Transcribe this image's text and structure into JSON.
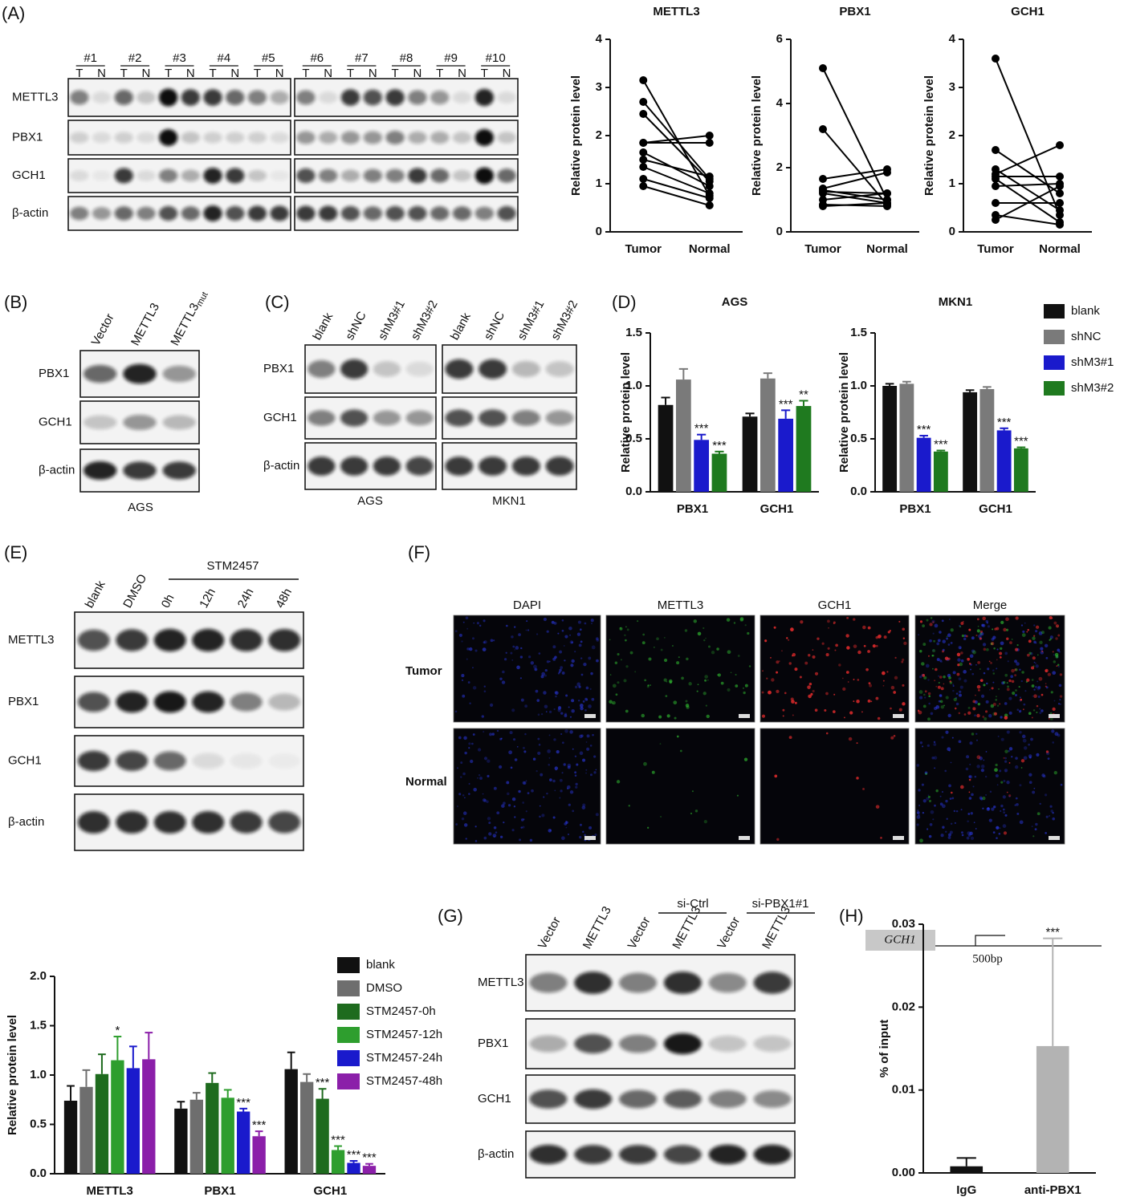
{
  "panel_labels": [
    "(A)",
    "(B)",
    "(C)",
    "(D)",
    "(E)",
    "(F)",
    "(G)",
    "(H)"
  ],
  "chart_data": [
    {
      "type": "line",
      "title": "METTL3",
      "y_label": "Relative protein level",
      "categories": [
        "Tumor",
        "Normal"
      ],
      "color": "#000000",
      "ylim": [
        0,
        4
      ],
      "yticks": [
        0,
        1,
        2,
        3,
        4
      ],
      "series": [
        {
          "values": [
            3.15,
            0.75
          ]
        },
        {
          "values": [
            2.7,
            1.1
          ]
        },
        {
          "values": [
            2.45,
            1.05
          ]
        },
        {
          "values": [
            1.85,
            2.0
          ]
        },
        {
          "values": [
            1.85,
            1.85
          ]
        },
        {
          "values": [
            1.65,
            0.95
          ]
        },
        {
          "values": [
            1.5,
            1.15
          ]
        },
        {
          "values": [
            1.35,
            0.8
          ]
        },
        {
          "values": [
            1.1,
            0.7
          ]
        },
        {
          "values": [
            0.95,
            0.55
          ]
        }
      ]
    },
    {
      "type": "line",
      "title": "PBX1",
      "y_label": "Relative protein level",
      "categories": [
        "Tumor",
        "Normal"
      ],
      "color": "#000000",
      "ylim": [
        0,
        6
      ],
      "yticks": [
        0,
        2,
        4,
        6
      ],
      "series": [
        {
          "values": [
            5.1,
            1.0
          ]
        },
        {
          "values": [
            3.2,
            0.85
          ]
        },
        {
          "values": [
            1.65,
            1.95
          ]
        },
        {
          "values": [
            1.35,
            1.85
          ]
        },
        {
          "values": [
            1.25,
            1.2
          ]
        },
        {
          "values": [
            1.2,
            0.9
          ]
        },
        {
          "values": [
            1.0,
            1.2
          ]
        },
        {
          "values": [
            0.85,
            0.8
          ]
        },
        {
          "values": [
            1.3,
            1.0
          ]
        },
        {
          "values": [
            0.8,
            0.9
          ]
        }
      ]
    },
    {
      "type": "line",
      "title": "GCH1",
      "y_label": "Relative protein level",
      "categories": [
        "Tumor",
        "Normal"
      ],
      "color": "#000000",
      "ylim": [
        0,
        4
      ],
      "yticks": [
        0,
        1,
        2,
        3,
        4
      ],
      "series": [
        {
          "values": [
            3.6,
            0.35
          ]
        },
        {
          "values": [
            1.7,
            0.8
          ]
        },
        {
          "values": [
            1.3,
            0.45
          ]
        },
        {
          "values": [
            1.2,
            1.8
          ]
        },
        {
          "values": [
            1.1,
            0.2
          ]
        },
        {
          "values": [
            1.15,
            1.15
          ]
        },
        {
          "values": [
            0.95,
            1.0
          ]
        },
        {
          "values": [
            0.6,
            0.6
          ]
        },
        {
          "values": [
            0.35,
            0.15
          ]
        },
        {
          "values": [
            0.25,
            0.95
          ]
        }
      ]
    },
    {
      "type": "bar",
      "title": "AGS",
      "y_label": "Relative protein level",
      "categories": [
        "PBX1",
        "GCH1"
      ],
      "legend": "right",
      "ylim": [
        0,
        1.5
      ],
      "yticks": [
        {
          "value": 0,
          "label": "0.0"
        },
        0.5,
        {
          "value": 1,
          "label": "1.0"
        },
        1.5
      ],
      "series": [
        {
          "name": "blank",
          "color": "#111111",
          "values": [
            0.82,
            0.71
          ],
          "errors": [
            0.07,
            0.03
          ]
        },
        {
          "name": "shNC",
          "color": "#7a7a7a",
          "values": [
            1.06,
            1.07
          ],
          "errors": [
            0.1,
            0.05
          ]
        },
        {
          "name": "shM3#1",
          "color": "#1a1acc",
          "values": [
            0.49,
            0.69
          ],
          "errors": [
            0.05,
            0.08
          ],
          "significance": [
            "***",
            "***"
          ]
        },
        {
          "name": "shM3#2",
          "color": "#1f7a1f",
          "values": [
            0.36,
            0.81
          ],
          "errors": [
            0.02,
            0.05
          ],
          "significance": [
            "***",
            "**"
          ]
        }
      ]
    },
    {
      "type": "bar",
      "title": "MKN1",
      "y_label": "Relative protein level",
      "categories": [
        "PBX1",
        "GCH1"
      ],
      "ylim": [
        0,
        1.5
      ],
      "yticks": [
        {
          "value": 0,
          "label": "0.0"
        },
        0.5,
        {
          "value": 1,
          "label": "1.0"
        },
        1.5
      ],
      "series": [
        {
          "color": "#111111",
          "values": [
            1.0,
            0.94
          ],
          "errors": [
            0.02,
            0.02
          ]
        },
        {
          "color": "#7a7a7a",
          "values": [
            1.02,
            0.97
          ],
          "errors": [
            0.02,
            0.02
          ]
        },
        {
          "color": "#1a1acc",
          "values": [
            0.51,
            0.58
          ],
          "errors": [
            0.02,
            0.02
          ],
          "significance": [
            "***",
            "***"
          ]
        },
        {
          "color": "#1f7a1f",
          "values": [
            0.38,
            0.41
          ],
          "errors": [
            0.01,
            0.01
          ],
          "significance": [
            "***",
            "***"
          ]
        }
      ]
    },
    {
      "type": "bar",
      "y_label": "Relative protein level",
      "categories": [
        "METTL3",
        "PBX1",
        "GCH1"
      ],
      "legend": "right",
      "ylim": [
        0,
        2.0
      ],
      "yticks": [
        {
          "value": 0,
          "label": "0.0"
        },
        0.5,
        {
          "value": 1,
          "label": "1.0"
        },
        1.5,
        {
          "value": 2,
          "label": "2.0"
        }
      ],
      "series": [
        {
          "name": "blank",
          "color": "#111111",
          "values": [
            0.74,
            0.66,
            1.06
          ],
          "errors": [
            0.15,
            0.07,
            0.17
          ]
        },
        {
          "name": "DMSO",
          "color": "#6e6e6e",
          "values": [
            0.88,
            0.75,
            0.93
          ],
          "errors": [
            0.17,
            0.07,
            0.08
          ]
        },
        {
          "name": "STM2457-0h",
          "color": "#1e6b1e",
          "values": [
            1.01,
            0.92,
            0.76
          ],
          "errors": [
            0.2,
            0.1,
            0.1
          ],
          "significance": [
            null,
            null,
            "***"
          ]
        },
        {
          "name": "STM2457-12h",
          "color": "#2e9e2e",
          "values": [
            1.15,
            0.77,
            0.24
          ],
          "errors": [
            0.24,
            0.08,
            0.04
          ],
          "significance": [
            "*",
            null,
            "***"
          ]
        },
        {
          "name": "STM2457-24h",
          "color": "#1a1acc",
          "values": [
            1.07,
            0.63,
            0.11
          ],
          "errors": [
            0.22,
            0.03,
            0.02
          ],
          "significance": [
            null,
            "***",
            "***"
          ]
        },
        {
          "name": "STM2457-48h",
          "color": "#8b1fa9",
          "values": [
            1.16,
            0.38,
            0.08
          ],
          "errors": [
            0.27,
            0.05,
            0.02
          ],
          "significance": [
            null,
            "***",
            "***"
          ]
        }
      ]
    },
    {
      "type": "bar",
      "y_label": "% of input",
      "categories": [
        "IgG",
        "anti-PBX1"
      ],
      "colors": [
        "#111111",
        "#b3b3b3"
      ],
      "values": [
        0.0008,
        0.0153
      ],
      "errors": [
        0.001,
        0.013
      ],
      "significance": [
        null,
        "***"
      ],
      "ylim": [
        0,
        0.03
      ],
      "yticks": [
        {
          "value": 0,
          "label": "0.00"
        },
        0.01,
        0.02,
        0.03
      ]
    }
  ],
  "blots": {
    "A": {
      "samples": [
        "#1",
        "#2",
        "#3",
        "#4",
        "#5",
        "#6",
        "#7",
        "#8",
        "#9",
        "#10"
      ],
      "lanes": [
        "T",
        "N"
      ],
      "rows": [
        "METTL3",
        "PBX1",
        "GCH1",
        "β-actin"
      ]
    },
    "B": {
      "lanes": [
        "Vector",
        "METTL3",
        "METTL3"
      ],
      "mut": "mut",
      "rows": [
        "PBX1",
        "GCH1",
        "β-actin"
      ],
      "cell": "AGS"
    },
    "C": {
      "lanes": [
        "blank",
        "shNC",
        "shM3#1",
        "shM3#2"
      ],
      "rows": [
        "PBX1",
        "GCH1",
        "β-actin"
      ],
      "cells": [
        "AGS",
        "MKN1"
      ]
    },
    "E": {
      "treatment": "STM2457",
      "lanes": [
        "blank",
        "DMSO",
        "0h",
        "12h",
        "24h",
        "48h"
      ],
      "rows": [
        "METTL3",
        "PBX1",
        "GCH1",
        "β-actin"
      ]
    },
    "G": {
      "groups": [
        "si-Ctrl",
        "si-PBX1#1"
      ],
      "lanes": [
        "Vector",
        "METTL3",
        "Vector",
        "METTL3",
        "Vector",
        "METTL3"
      ],
      "rows": [
        "METTL3",
        "PBX1",
        "GCH1",
        "β-actin"
      ]
    }
  },
  "immunofluorescence": {
    "channels": [
      "DAPI",
      "METTL3",
      "GCH1",
      "Merge"
    ],
    "rows": [
      "Tumor",
      "Normal"
    ]
  },
  "gene_map": {
    "gene": "GCH1",
    "scale": "500bp"
  }
}
